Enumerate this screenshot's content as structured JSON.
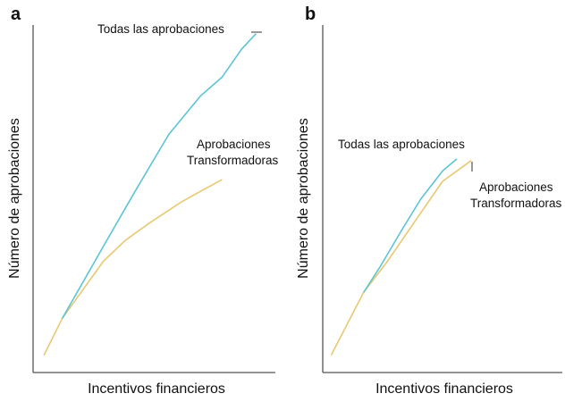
{
  "colors": {
    "all": "#5cc4d6",
    "transformative": "#e9c872",
    "axis": "#555555",
    "text": "#111111"
  },
  "chart_data": [
    {
      "type": "line",
      "panel_label": "a",
      "xlabel": "Incentivos financieros",
      "ylabel": "Número de aprobaciones",
      "xlim": [
        0,
        10
      ],
      "ylim": [
        0,
        10
      ],
      "grid": false,
      "series": [
        {
          "name": "Todas las aprobaciones",
          "color_key": "all",
          "x": [
            1.2,
            3.0,
            4.2,
            5.6,
            6.9,
            7.8,
            8.6,
            9.2
          ],
          "y": [
            1.55,
            3.75,
            5.2,
            6.85,
            7.95,
            8.5,
            9.3,
            9.75
          ]
        },
        {
          "name": "Aprobaciones Transformadoras",
          "color_key": "transformative",
          "x": [
            0.45,
            1.2,
            2.9,
            3.8,
            4.8,
            6.1,
            7.0,
            7.8
          ],
          "y": [
            0.5,
            1.55,
            3.2,
            3.8,
            4.3,
            4.9,
            5.25,
            5.55
          ]
        }
      ],
      "annotations": [
        {
          "key": "all",
          "lines": [
            "Todas las aprobaciones"
          ]
        },
        {
          "key": "transformative",
          "lines": [
            "Aprobaciones",
            "Transformadoras"
          ]
        }
      ]
    },
    {
      "type": "line",
      "panel_label": "b",
      "xlabel": "Incentivos financieros",
      "ylabel": "Número de aprobaciones",
      "xlim": [
        0,
        10
      ],
      "ylim": [
        0,
        10
      ],
      "grid": false,
      "series": [
        {
          "name": "Todas las aprobaciones",
          "color_key": "all",
          "x": [
            1.7,
            2.4,
            3.3,
            4.1,
            5.0,
            5.6
          ],
          "y": [
            2.3,
            3.05,
            4.1,
            5.0,
            5.8,
            6.15
          ]
        },
        {
          "name": "Aprobaciones Transformadoras",
          "color_key": "transformative",
          "x": [
            0.35,
            1.7,
            2.7,
            3.8,
            5.0,
            6.2
          ],
          "y": [
            0.5,
            2.3,
            3.2,
            4.3,
            5.5,
            6.1
          ]
        }
      ],
      "annotations": [
        {
          "key": "all",
          "lines": [
            "Todas las aprobaciones"
          ]
        },
        {
          "key": "transformative",
          "lines": [
            "Aprobaciones",
            "Transformadoras"
          ]
        }
      ]
    }
  ]
}
